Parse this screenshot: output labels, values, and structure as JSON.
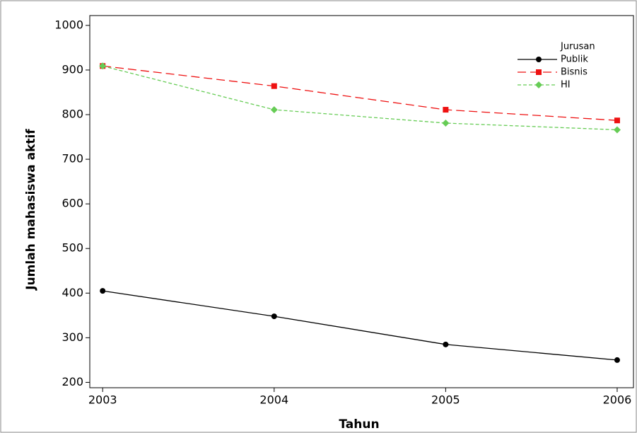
{
  "chart_data": {
    "type": "line",
    "xlabel": "Tahun",
    "ylabel": "Jumlah mahasiswa aktif",
    "x": [
      2003,
      2004,
      2005,
      2006
    ],
    "series": [
      {
        "name": "Publik",
        "color": "#000000",
        "dash": "solid",
        "marker": "circle",
        "values": [
          405,
          348,
          285,
          250
        ]
      },
      {
        "name": "Bisnis",
        "color": "#ee1111",
        "dash": "long",
        "marker": "square",
        "values": [
          909,
          864,
          811,
          787
        ]
      },
      {
        "name": "HI",
        "color": "#66cc55",
        "dash": "short",
        "marker": "diamond",
        "values": [
          909,
          811,
          781,
          766
        ]
      }
    ],
    "legend_title": "Jurusan",
    "legend": "top-right",
    "xlim": [
      2002.925,
      2006.095
    ],
    "xticks": [
      2003,
      2004,
      2005,
      2006
    ],
    "ylim": [
      188,
      1022
    ],
    "yticks": [
      200,
      300,
      400,
      500,
      600,
      700,
      800,
      900,
      1000
    ],
    "grid": false
  }
}
